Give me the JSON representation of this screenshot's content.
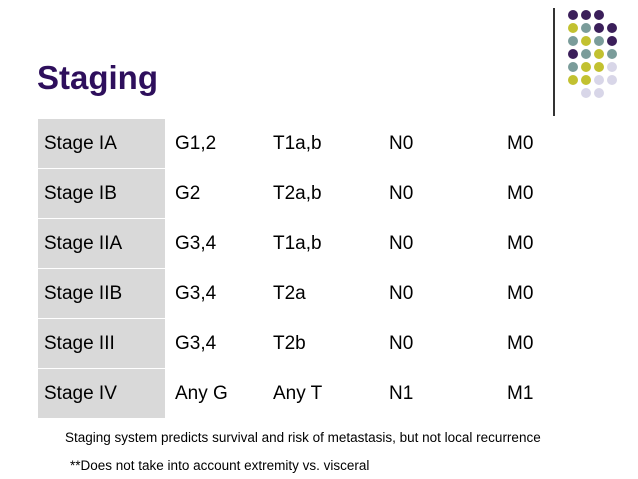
{
  "slide": {
    "title": "Staging"
  },
  "decoration": {
    "dot_colors": {
      "purple": "#3b1f5a",
      "teal": "#7a9c9a",
      "olive": "#c2c130",
      "lavender": "#d8d6e8"
    },
    "title_color": "#2e0f5c",
    "first_column_fill": "#d9d9d9"
  },
  "table": {
    "rows": [
      [
        "Stage IA",
        "G1,2",
        "T1a,b",
        "N0",
        "M0"
      ],
      [
        "Stage IB",
        "G2",
        "T2a,b",
        "N0",
        "M0"
      ],
      [
        "Stage IIA",
        "G3,4",
        "T1a,b",
        "N0",
        "M0"
      ],
      [
        "Stage IIB",
        "G3,4",
        "T2a",
        "N0",
        "M0"
      ],
      [
        "Stage III",
        "G3,4",
        "T2b",
        "N0",
        "M0"
      ],
      [
        "Stage IV",
        "Any G",
        "Any T",
        "N1",
        "M1"
      ]
    ]
  },
  "notes": {
    "line1": "Staging system predicts survival and risk of metastasis, but not local recurrence",
    "line2": "**Does not take into account extremity vs. visceral"
  }
}
